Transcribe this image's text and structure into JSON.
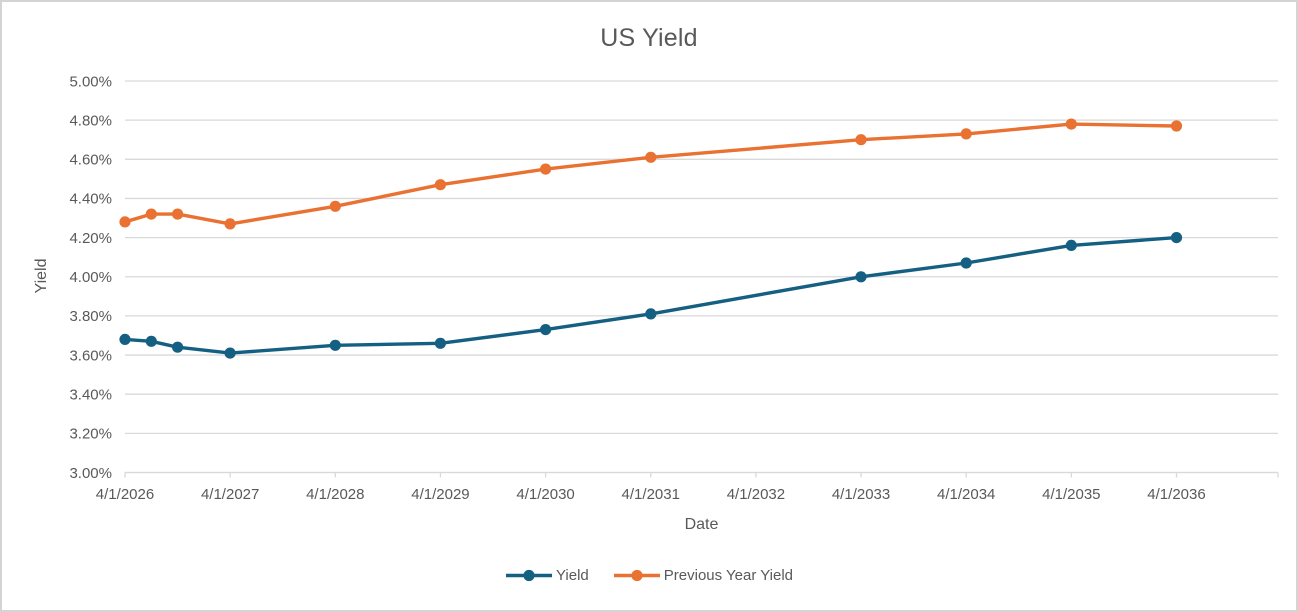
{
  "window": {
    "background": "#ffffff",
    "border_color": "#d4d4d4"
  },
  "chart_data": {
    "type": "line",
    "title": "US Yield",
    "xlabel": "Date",
    "ylabel": "Yield",
    "text_color": "#595959",
    "gridline_color": "#d9d9d9",
    "grid": true,
    "legend_position": "bottom",
    "marker": "circle",
    "ylim": [
      3.0,
      5.0
    ],
    "y_ticks": [
      "5.00%",
      "4.80%",
      "4.60%",
      "4.40%",
      "4.20%",
      "4.00%",
      "3.80%",
      "3.60%",
      "3.40%",
      "3.20%",
      "3.00%"
    ],
    "x_ticks": [
      "4/1/2026",
      "4/1/2027",
      "4/1/2028",
      "4/1/2029",
      "4/1/2030",
      "4/1/2031",
      "4/1/2032",
      "4/1/2033",
      "4/1/2034",
      "4/1/2035",
      "4/1/2036"
    ],
    "x": [
      "4/1/2026",
      "7/1/2026",
      "10/1/2026",
      "4/1/2027",
      "4/1/2028",
      "4/1/2029",
      "4/1/2030",
      "4/1/2031",
      "4/1/2033",
      "4/1/2034",
      "4/1/2035",
      "4/1/2036"
    ],
    "series": [
      {
        "name": "Yield",
        "color": "#156082",
        "values": [
          3.68,
          3.67,
          3.64,
          3.61,
          3.65,
          3.66,
          3.73,
          3.81,
          4.0,
          4.07,
          4.16,
          4.2
        ]
      },
      {
        "name": "Previous Year Yield",
        "color": "#E97132",
        "values": [
          4.28,
          4.32,
          4.32,
          4.27,
          4.36,
          4.47,
          4.55,
          4.61,
          4.7,
          4.73,
          4.78,
          4.77
        ]
      }
    ]
  }
}
